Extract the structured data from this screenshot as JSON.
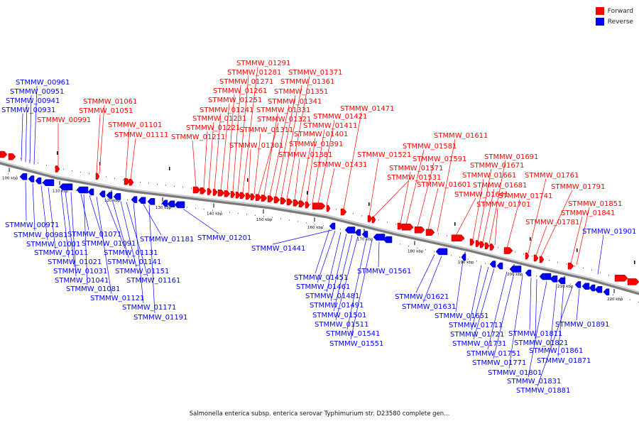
{
  "legend": {
    "forward_label": "Forward",
    "reverse_label": "Reverse",
    "forward_color": "#ff0000",
    "reverse_color": "#0000ff"
  },
  "caption": "Salmonella enterica subsp. enterica serovar Typhimurium str. D23580 complete gen...",
  "ticks": [
    "100 kbp",
    "110 kbp",
    "120 kbp",
    "130 kbp",
    "140 kbp",
    "150 kbp",
    "160 kbp",
    "170 kbp",
    "180 kbp",
    "190 kbp",
    "200 kbp",
    "210 kbp",
    "220 kbp"
  ],
  "genes_forward": [
    "STMMW_00991",
    "STMMW_01051",
    "STMMW_01061",
    "STMMW_01101",
    "STMMW_01111",
    "STMMW_01211",
    "STMMW_01221",
    "STMMW_01231",
    "STMMW_01241",
    "STMMW_01251",
    "STMMW_01261",
    "STMMW_01271",
    "STMMW_01281",
    "STMMW_01291",
    "STMMW_01301",
    "STMMW_01311",
    "STMMW_01321",
    "STMMW_01331",
    "STMMW_01341",
    "STMMW_01351",
    "STMMW_01361",
    "STMMW_01371",
    "STMMW_01381",
    "STMMW_01391",
    "STMMW_01401",
    "STMMW_01411",
    "STMMW_01421",
    "STMMW_01431",
    "STMMW_01471",
    "STMMW_01521",
    "STMMW_01531",
    "STMMW_01571",
    "STMMW_01581",
    "STMMW_01591",
    "STMMW_01601",
    "STMMW_01611",
    "STMMW_01641",
    "STMMW_01661",
    "STMMW_01671",
    "STMMW_01681",
    "STMMW_01691",
    "STMMW_01701",
    "STMMW_01741",
    "STMMW_01761",
    "STMMW_01781",
    "STMMW_01791",
    "STMMW_01841",
    "STMMW_01851"
  ],
  "genes_reverse": [
    "STMMW_00931",
    "STMMW_00941",
    "STMMW_00951",
    "STMMW_00961",
    "STMMW_00971",
    "STMMW_00981",
    "STMMW_01001",
    "STMMW_01011",
    "STMMW_01021",
    "STMMW_01031",
    "STMMW_01041",
    "STMMW_01071",
    "STMMW_01081",
    "STMMW_01091",
    "STMMW_01121",
    "STMMW_01131",
    "STMMW_01141",
    "STMMW_01151",
    "STMMW_01161",
    "STMMW_01171",
    "STMMW_01181",
    "STMMW_01191",
    "STMMW_01201",
    "STMMW_01441",
    "STMMW_01451",
    "STMMW_01461",
    "STMMW_01481",
    "STMMW_01491",
    "STMMW_01501",
    "STMMW_01511",
    "STMMW_01541",
    "STMMW_01551",
    "STMMW_01561",
    "STMMW_01621",
    "STMMW_01631",
    "STMMW_01651",
    "STMMW_01711",
    "STMMW_01721",
    "STMMW_01731",
    "STMMW_01751",
    "STMMW_01771",
    "STMMW_01801",
    "STMMW_01811",
    "STMMW_01821",
    "STMMW_01831",
    "STMMW_01861",
    "STMMW_01871",
    "STMMW_01881",
    "STMMW_01891",
    "STMMW_01901"
  ]
}
